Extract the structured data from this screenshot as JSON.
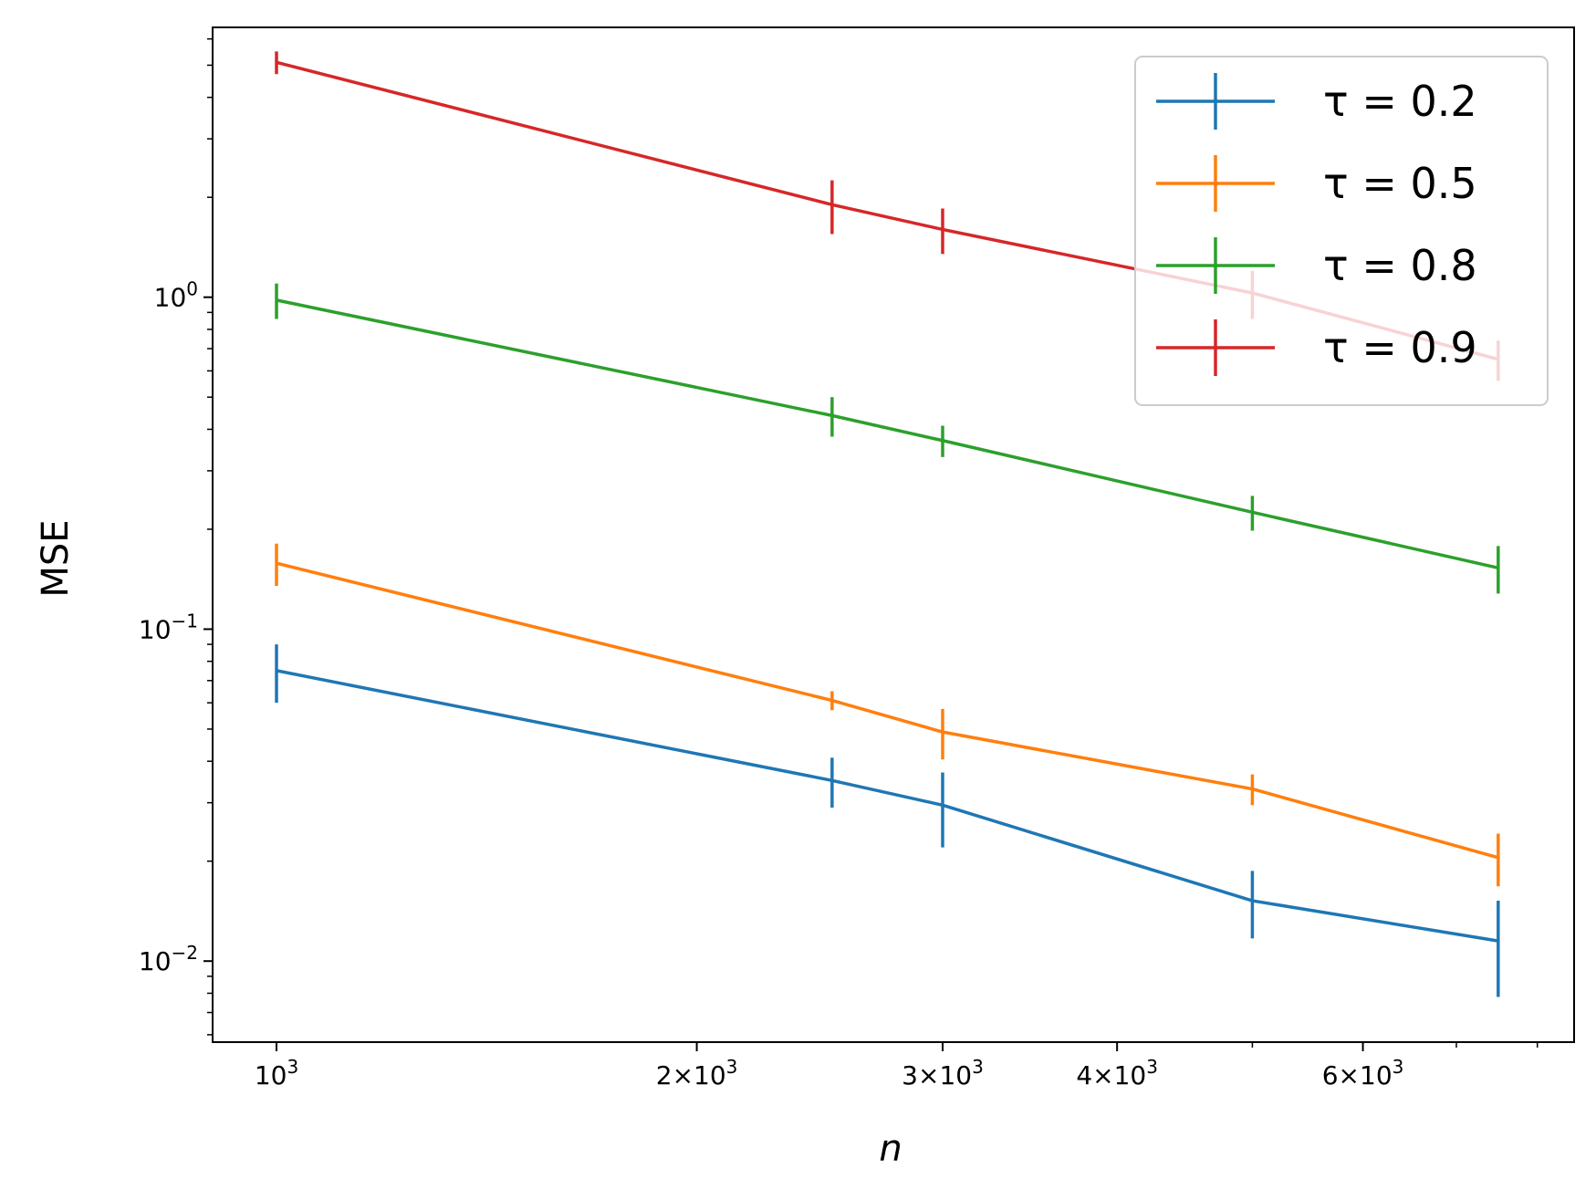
{
  "chart_data": {
    "type": "line",
    "title": "",
    "xlabel": "n",
    "ylabel": "MSE",
    "xscale": "log",
    "yscale": "log",
    "xlim": [
      900,
      8500
    ],
    "ylim": [
      0.0057,
      6.5
    ],
    "x": [
      1000,
      2500,
      3000,
      5000,
      7500
    ],
    "x_ticks": [
      {
        "value": 1000,
        "base": "10",
        "exp": "3"
      },
      {
        "value": 2000,
        "base": "2×10",
        "exp": "3"
      },
      {
        "value": 3000,
        "base": "3×10",
        "exp": "3"
      },
      {
        "value": 4000,
        "base": "4×10",
        "exp": "3"
      },
      {
        "value": 6000,
        "base": "6×10",
        "exp": "3"
      }
    ],
    "y_ticks": [
      {
        "value": 0.01,
        "base": "10",
        "exp": "−2"
      },
      {
        "value": 0.1,
        "base": "10",
        "exp": "−1"
      },
      {
        "value": 1,
        "base": "10",
        "exp": "0"
      }
    ],
    "legend_location": "top-right",
    "series": [
      {
        "name": "τ = 0.2",
        "color": "#1f77b4",
        "values": [
          0.075,
          0.035,
          0.0295,
          0.0152,
          0.0115
        ],
        "err": [
          0.015,
          0.006,
          0.0075,
          0.0035,
          0.0037
        ]
      },
      {
        "name": "τ = 0.5",
        "color": "#ff7f0e",
        "values": [
          0.158,
          0.061,
          0.049,
          0.033,
          0.0205
        ],
        "err": [
          0.023,
          0.004,
          0.0085,
          0.0035,
          0.0037
        ]
      },
      {
        "name": "τ = 0.8",
        "color": "#2ca02c",
        "values": [
          0.98,
          0.44,
          0.37,
          0.225,
          0.153
        ],
        "err": [
          0.12,
          0.06,
          0.04,
          0.027,
          0.025
        ]
      },
      {
        "name": "τ = 0.9",
        "color": "#d62728",
        "values": [
          5.1,
          1.9,
          1.6,
          1.03,
          0.65
        ],
        "err": [
          0.4,
          0.35,
          0.25,
          0.17,
          0.09
        ]
      }
    ]
  }
}
